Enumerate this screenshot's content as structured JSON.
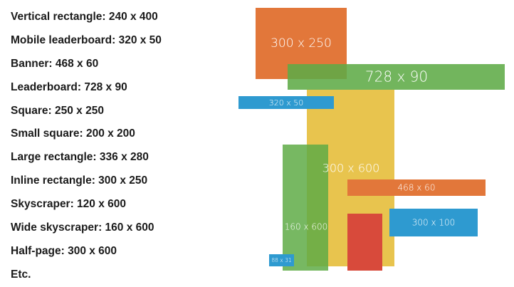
{
  "list": [
    "Vertical rectangle: 240 x 400",
    "Mobile leaderboard: 320 x 50",
    "Banner: 468 x 60",
    "Leaderboard: 728 x 90",
    "Square: 250 x 250",
    "Small square: 200 x 200",
    "Large rectangle: 336 x 280",
    "Inline rectangle: 300 x 250",
    "Skyscraper: 120 x 600",
    "Wide skyscraper: 160 x 600",
    "Half-page: 300 x 600",
    "Etc."
  ],
  "boxes": {
    "inline_rectangle": "300 x 250",
    "leaderboard": "728 x 90",
    "mobile_leaderboard": "320 x 50",
    "half_page": "300 x 600",
    "wide_skyscraper": "160 x 600",
    "banner": "468 x 60",
    "small_banner": "300 x 100",
    "micro_bar": "88 x 31"
  }
}
